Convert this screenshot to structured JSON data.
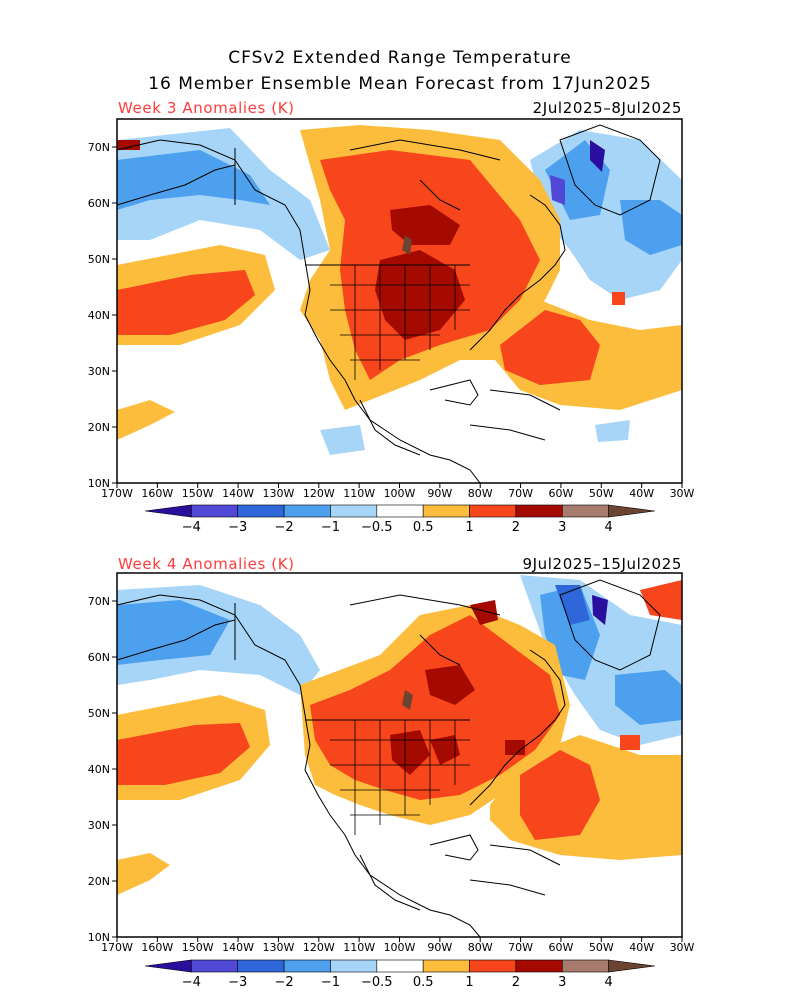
{
  "title_line1": "CFSv2 Extended Range Temperature",
  "title_line2": "16 Member Ensemble Mean Forecast from 17Jun2025",
  "panels": [
    {
      "label": "Week 3 Anomalies (K)",
      "dates": "2Jul2025–8Jul2025"
    },
    {
      "label": "Week 4 Anomalies (K)",
      "dates": "9Jul2025–15Jul2025"
    }
  ],
  "lat_labels": [
    "70N",
    "60N",
    "50N",
    "40N",
    "30N",
    "20N",
    "10N"
  ],
  "lon_labels": [
    "170W",
    "160W",
    "150W",
    "140W",
    "130W",
    "120W",
    "110W",
    "100W",
    "90W",
    "80W",
    "70W",
    "60W",
    "50W",
    "40W",
    "30W"
  ],
  "colorbar": {
    "labels": [
      "−4",
      "−3",
      "−2",
      "−1",
      "−0.5",
      "0.5",
      "1",
      "2",
      "3",
      "4"
    ],
    "colors": [
      "#2a0f9e",
      "#5148d6",
      "#2f67da",
      "#4da0ee",
      "#a6d5f7",
      "#ffffff",
      "#fcbd3c",
      "#f7451c",
      "#a50a00",
      "#a87b6f",
      "#6b4432"
    ]
  },
  "colors": {
    "title_red": "#ff3b3b"
  }
}
